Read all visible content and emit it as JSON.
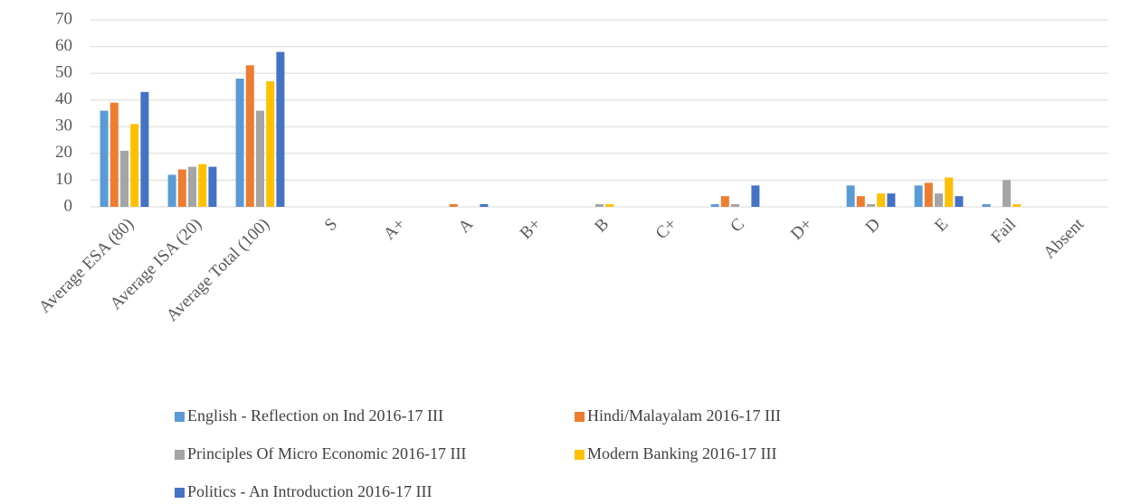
{
  "chart_data": {
    "type": "bar",
    "categories": [
      "Average ESA (80)",
      "Average ISA (20)",
      "Average Total (100)",
      "S",
      "A+",
      "A",
      "B+",
      "B",
      "C+",
      "C",
      "D+",
      "D",
      "E",
      "Fail",
      "Absent"
    ],
    "series": [
      {
        "name": "English - Reflection on Ind 2016-17 III",
        "color": "#5b9bd5",
        "values": [
          36,
          12,
          48,
          0,
          0,
          0,
          0,
          0,
          0,
          1,
          0,
          8,
          8,
          1,
          0
        ]
      },
      {
        "name": "Hindi/Malayalam  2016-17 III",
        "color": "#ed7d31",
        "values": [
          39,
          14,
          53,
          0,
          0,
          1,
          0,
          0,
          0,
          4,
          0,
          4,
          9,
          0,
          0
        ]
      },
      {
        "name": "Principles Of  Micro Economic 2016-17 III",
        "color": "#a5a5a5",
        "values": [
          21,
          15,
          36,
          0,
          0,
          0,
          0,
          1,
          0,
          1,
          0,
          1,
          5,
          10,
          0
        ]
      },
      {
        "name": "Modern Banking 2016-17 III",
        "color": "#ffc000",
        "values": [
          31,
          16,
          47,
          0,
          0,
          0,
          0,
          1,
          0,
          0,
          0,
          5,
          11,
          1,
          0
        ]
      },
      {
        "name": "Politics - An Introduction 2016-17 III",
        "color": "#4472c4",
        "values": [
          43,
          15,
          58,
          0,
          0,
          1,
          0,
          0,
          0,
          8,
          0,
          5,
          4,
          0,
          0
        ]
      }
    ],
    "ylim": [
      0,
      70
    ],
    "yticks": [
      0,
      10,
      20,
      30,
      40,
      50,
      60,
      70
    ],
    "grid": true,
    "legend": "bottom"
  }
}
